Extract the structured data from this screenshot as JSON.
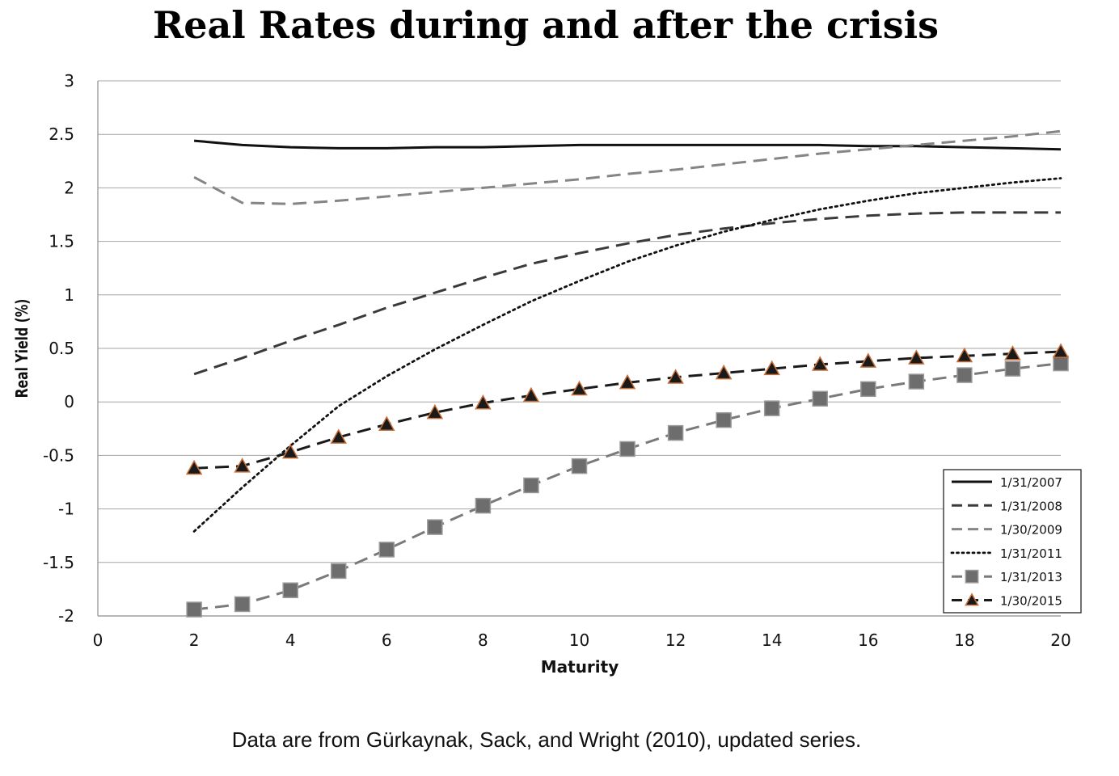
{
  "title": "Real Rates during and after the crisis",
  "caption": "Data are from Gürkaynak, Sack, and Wright (2010), updated series.",
  "chart_data": {
    "type": "line",
    "title": "Real Rates during and after the crisis",
    "xlabel": "Maturity",
    "ylabel": "Real Yield (%)",
    "xlim": [
      0,
      20
    ],
    "ylim": [
      -2,
      3
    ],
    "xticks": [
      "0",
      "2",
      "4",
      "6",
      "8",
      "10",
      "12",
      "14",
      "16",
      "18",
      "20"
    ],
    "yticks": [
      "-2",
      "-1.5",
      "-1",
      "-0.5",
      "0",
      "0.5",
      "1",
      "1.5",
      "2",
      "2.5",
      "3"
    ],
    "grid": "horizontal",
    "legend_position": "bottom-right",
    "x": [
      2,
      3,
      4,
      5,
      6,
      7,
      8,
      9,
      10,
      11,
      12,
      13,
      14,
      15,
      16,
      17,
      18,
      19,
      20
    ],
    "series": [
      {
        "name": "1/31/2007",
        "style": "solid",
        "color": "#111111",
        "marker": "none",
        "values": [
          2.44,
          2.4,
          2.38,
          2.37,
          2.37,
          2.38,
          2.38,
          2.39,
          2.4,
          2.4,
          2.4,
          2.4,
          2.4,
          2.4,
          2.39,
          2.39,
          2.38,
          2.37,
          2.36
        ]
      },
      {
        "name": "1/31/2008",
        "style": "dash",
        "color": "#3a3a3a",
        "marker": "none",
        "values": [
          0.26,
          0.41,
          0.57,
          0.72,
          0.88,
          1.02,
          1.16,
          1.29,
          1.39,
          1.48,
          1.56,
          1.62,
          1.67,
          1.71,
          1.74,
          1.76,
          1.77,
          1.77,
          1.77
        ]
      },
      {
        "name": "1/30/2009",
        "style": "dash",
        "color": "#858585",
        "marker": "none",
        "values": [
          2.1,
          1.86,
          1.85,
          1.88,
          1.92,
          1.96,
          2.0,
          2.04,
          2.08,
          2.13,
          2.17,
          2.22,
          2.27,
          2.32,
          2.36,
          2.4,
          2.44,
          2.48,
          2.53
        ]
      },
      {
        "name": "1/31/2011",
        "style": "dot",
        "color": "#111111",
        "marker": "none",
        "values": [
          -1.21,
          -0.8,
          -0.41,
          -0.04,
          0.24,
          0.49,
          0.72,
          0.94,
          1.13,
          1.31,
          1.46,
          1.59,
          1.7,
          1.8,
          1.88,
          1.95,
          2.0,
          2.05,
          2.09
        ]
      },
      {
        "name": "1/31/2013",
        "style": "dash",
        "color": "#7a7a7a",
        "marker": "square",
        "values": [
          -1.94,
          -1.89,
          -1.76,
          -1.58,
          -1.38,
          -1.17,
          -0.97,
          -0.78,
          -0.6,
          -0.44,
          -0.29,
          -0.17,
          -0.06,
          0.03,
          0.12,
          0.19,
          0.25,
          0.31,
          0.36
        ]
      },
      {
        "name": "1/30/2015",
        "style": "dash",
        "color": "#1a1a1a",
        "marker": "triangle",
        "values": [
          -0.62,
          -0.6,
          -0.47,
          -0.33,
          -0.21,
          -0.1,
          -0.01,
          0.06,
          0.12,
          0.18,
          0.23,
          0.27,
          0.31,
          0.35,
          0.38,
          0.41,
          0.43,
          0.45,
          0.47
        ]
      }
    ]
  }
}
